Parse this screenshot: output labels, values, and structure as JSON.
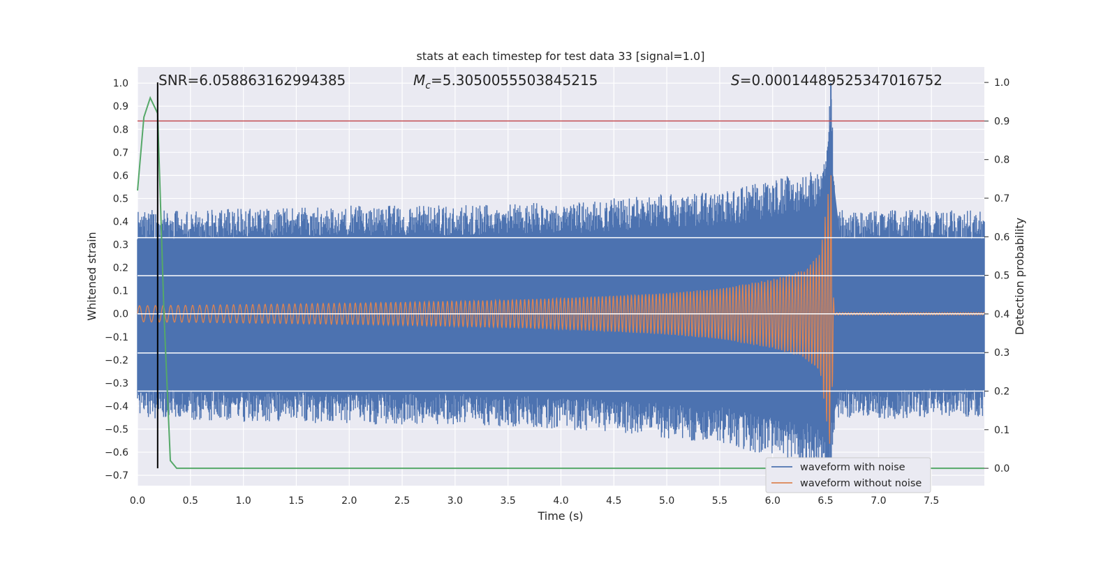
{
  "chart_data": {
    "type": "line",
    "title": "stats at each timestep for test data 33 [signal=1.0]",
    "xlabel": "Time (s)",
    "ylabel": "Whitened strain",
    "y2label": "Detection probability",
    "xlim": [
      0.0,
      8.0
    ],
    "ylim": [
      -0.745,
      1.07
    ],
    "y2lim": [
      -0.045,
      1.04
    ],
    "xticks": [
      "0.0",
      "0.5",
      "1.0",
      "1.5",
      "2.0",
      "2.5",
      "3.0",
      "3.5",
      "4.0",
      "4.5",
      "5.0",
      "5.5",
      "6.0",
      "6.5",
      "7.0",
      "7.5"
    ],
    "yticks": [
      "1.0",
      "0.9",
      "0.8",
      "0.7",
      "0.6",
      "0.5",
      "0.4",
      "0.3",
      "0.2",
      "0.1",
      "0.0",
      "−0.1",
      "−0.2",
      "−0.3",
      "−0.4",
      "−0.5",
      "−0.6",
      "−0.7"
    ],
    "y2ticks": [
      "1.0",
      "0.9",
      "0.8",
      "0.7",
      "0.6",
      "0.5",
      "0.4",
      "0.3",
      "0.2",
      "0.1",
      "0.0"
    ],
    "annotations": {
      "snr": "SNR=6.058863162994385",
      "mc_symbol": "M",
      "mc_sub": "c",
      "mc_value": "=5.3050055503845215",
      "s_symbol": "S",
      "s_value": "=0.00014489525347016752"
    },
    "grid": true,
    "legend_position": "lower-right",
    "legend": [
      "waveform with noise",
      "waveform without noise"
    ],
    "colors": {
      "noise": "#4c72b0",
      "clean": "#dd8452",
      "probability": "#55a868",
      "threshold": "#c44e52",
      "marker": "#000000",
      "axes_bg": "#eaeaf2"
    },
    "series": [
      {
        "name": "waveform with noise",
        "envelope": {
          "x": [
            0.0,
            0.5,
            1.0,
            1.5,
            2.0,
            2.5,
            3.0,
            3.5,
            4.0,
            4.5,
            5.0,
            5.5,
            6.0,
            6.3,
            6.5,
            6.55,
            6.6,
            7.0,
            7.5,
            8.0
          ],
          "ymax": [
            0.45,
            0.45,
            0.46,
            0.46,
            0.47,
            0.47,
            0.47,
            0.48,
            0.48,
            0.5,
            0.52,
            0.53,
            0.58,
            0.62,
            0.66,
            1.0,
            0.45,
            0.45,
            0.45,
            0.45
          ],
          "ymin": [
            -0.45,
            -0.46,
            -0.47,
            -0.47,
            -0.48,
            -0.48,
            -0.48,
            -0.49,
            -0.5,
            -0.52,
            -0.54,
            -0.56,
            -0.62,
            -0.64,
            -0.72,
            -0.7,
            -0.45,
            -0.46,
            -0.45,
            -0.45
          ]
        }
      },
      {
        "name": "waveform without noise",
        "envelope": {
          "x": [
            0.0,
            0.5,
            1.0,
            1.5,
            2.0,
            2.5,
            3.0,
            3.5,
            4.0,
            4.5,
            5.0,
            5.5,
            6.0,
            6.3,
            6.45,
            6.55,
            6.58,
            8.0
          ],
          "amp": [
            0.035,
            0.037,
            0.04,
            0.043,
            0.046,
            0.05,
            0.055,
            0.06,
            0.068,
            0.078,
            0.09,
            0.11,
            0.15,
            0.19,
            0.26,
            0.62,
            0.005,
            0.005
          ]
        },
        "cycles_per_second": 13
      },
      {
        "name": "detection probability",
        "axis": "right",
        "x": [
          0.0,
          0.06,
          0.12,
          0.19,
          0.25,
          0.31,
          0.37,
          8.0
        ],
        "y": [
          0.72,
          0.91,
          0.96,
          0.92,
          0.4,
          0.02,
          0.0,
          0.0
        ]
      }
    ],
    "threshold_probability": 0.9,
    "marker_x": 0.19,
    "horizontal_strain_lines": [
      0.33,
      0.165,
      0.0,
      -0.17,
      -0.335
    ]
  }
}
